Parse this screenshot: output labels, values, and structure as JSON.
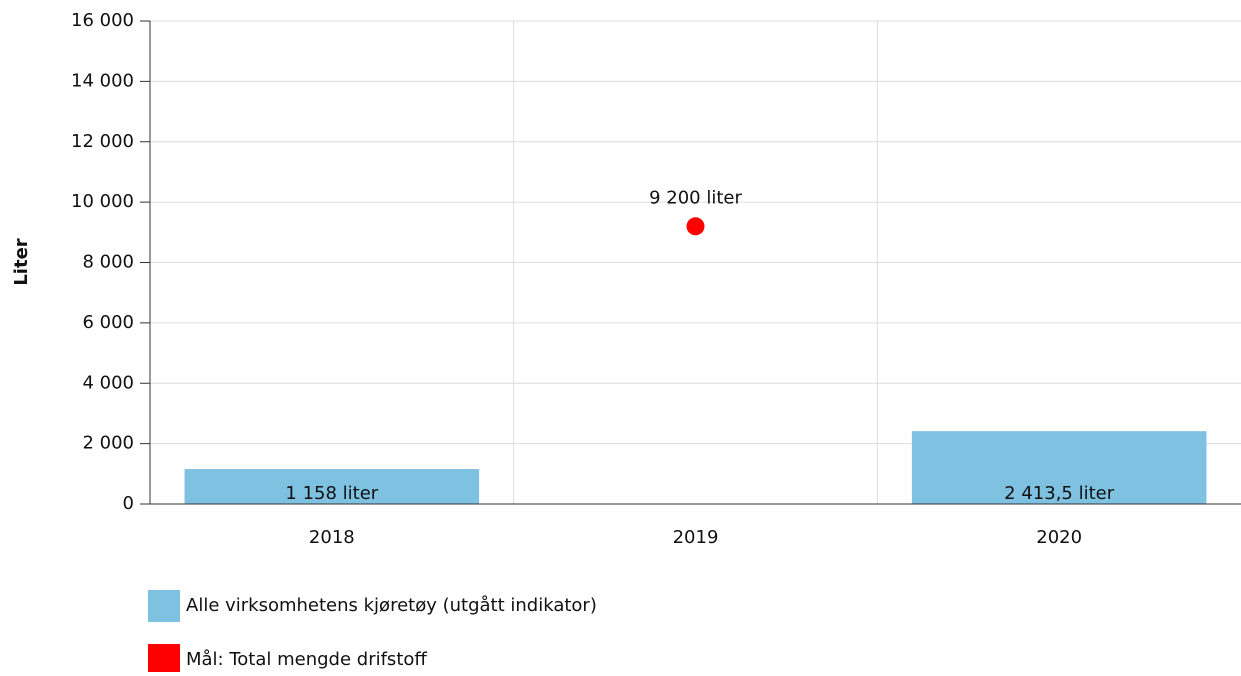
{
  "chart_data": {
    "type": "bar",
    "y_label": "Liter",
    "categories": [
      "2018",
      "2019",
      "2020"
    ],
    "series": [
      {
        "name": "Alle virksomhetens kjøretøy (utgått indikator)",
        "type": "bar",
        "color": "#7fc1e1",
        "values": [
          1158,
          null,
          2413.5
        ],
        "value_labels": [
          "1 158 liter",
          null,
          "2 413,5 liter"
        ]
      },
      {
        "name": "Mål: Total mengde drifstoff",
        "type": "scatter",
        "color": "#ff0000",
        "values": [
          null,
          9200,
          null
        ],
        "value_labels": [
          null,
          "9 200 liter",
          null
        ]
      }
    ],
    "ylim": [
      0,
      16000
    ],
    "yticks": [
      0,
      {
        "value": 2000,
        "label": "2 000"
      },
      {
        "value": 4000,
        "label": "4 000"
      },
      {
        "value": 6000,
        "label": "6 000"
      },
      {
        "value": 8000,
        "label": "8 000"
      },
      {
        "value": 10000,
        "label": "10 000"
      },
      {
        "value": 12000,
        "label": "12 000"
      },
      {
        "value": 14000,
        "label": "14 000"
      },
      {
        "value": 16000,
        "label": "16 000"
      }
    ],
    "grid": true
  }
}
